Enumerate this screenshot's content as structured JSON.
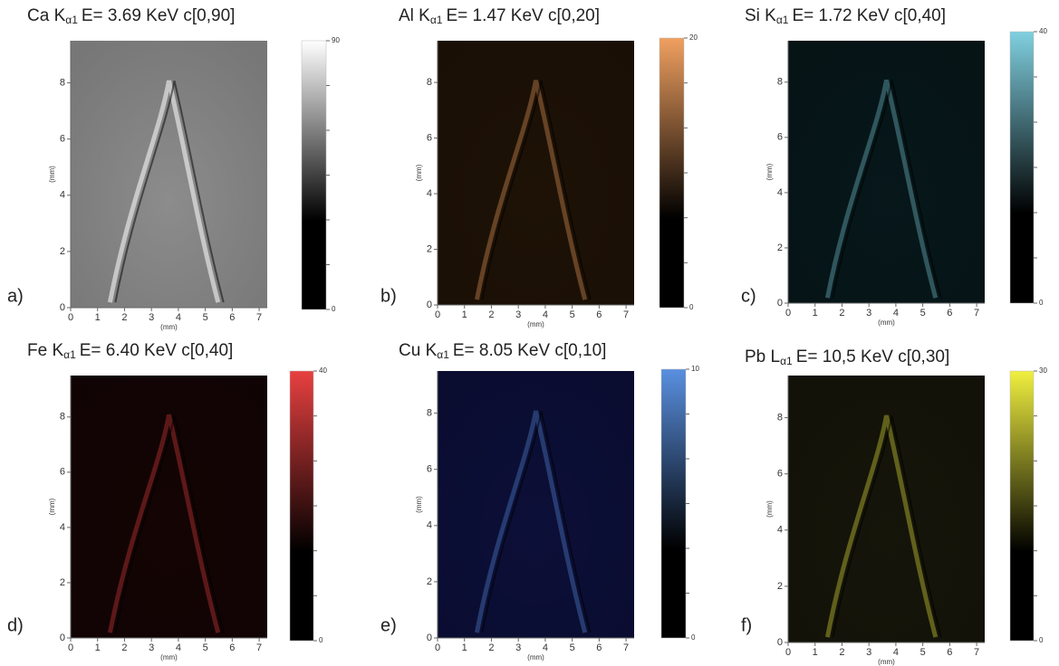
{
  "figure": {
    "axis_label": "(mm)",
    "panels": [
      {
        "label": "a)",
        "element": "Ca K",
        "subscript": "α1",
        "energy": "E= 3.69 KeV c[0,90]",
        "color": "#ffffff",
        "background": "#8c8c8c",
        "clim": [
          0,
          90
        ],
        "cbar_ticks": [
          0,
          90
        ],
        "xlim": [
          0,
          7.3
        ],
        "xticks": [
          0,
          1,
          2,
          3,
          4,
          5,
          6,
          7
        ],
        "ylim": [
          0,
          9.5
        ],
        "yticks": [
          0,
          2,
          4,
          6,
          8
        ]
      },
      {
        "label": "b)",
        "element": "Al K",
        "subscript": "α1",
        "energy": "E= 1.47 KeV c[0,20]",
        "color": "#f0a060",
        "background": "#1e1206",
        "clim": [
          0,
          20
        ],
        "cbar_ticks": [
          0,
          20
        ],
        "xlim": [
          0,
          7.3
        ],
        "xticks": [
          0,
          1,
          2,
          3,
          4,
          5,
          6,
          7
        ],
        "ylim": [
          0,
          9.5
        ],
        "yticks": [
          0,
          2,
          4,
          6,
          8
        ]
      },
      {
        "label": "c)",
        "element": "Si K",
        "subscript": "α1",
        "energy": "E= 1.72 KeV c[0,40]",
        "color": "#80d0e0",
        "background": "#07171a",
        "clim": [
          0,
          40
        ],
        "cbar_ticks": [
          0,
          40
        ],
        "xlim": [
          0,
          7.3
        ],
        "xticks": [
          0,
          1,
          2,
          3,
          4,
          5,
          6,
          7
        ],
        "ylim": [
          0,
          9.5
        ],
        "yticks": [
          0,
          2,
          4,
          6,
          8
        ]
      },
      {
        "label": "d)",
        "element": "Fe K",
        "subscript": "α1",
        "energy": "E= 6.40 KeV c[0,40]",
        "color": "#e84040",
        "background": "#140404",
        "clim": [
          0,
          40
        ],
        "cbar_ticks": [
          0,
          40
        ],
        "xlim": [
          0,
          7.3
        ],
        "xticks": [
          0,
          1,
          2,
          3,
          4,
          5,
          6,
          7
        ],
        "ylim": [
          0,
          9.5
        ],
        "yticks": [
          0,
          2,
          4,
          6,
          8
        ]
      },
      {
        "label": "e)",
        "element": "Cu K",
        "subscript": "α1",
        "energy": "E= 8.05 KeV c[0,10]",
        "color": "#5a90e0",
        "background": "#0c0f38",
        "clim": [
          0,
          10
        ],
        "cbar_ticks": [
          0,
          10
        ],
        "xlim": [
          0,
          7.3
        ],
        "xticks": [
          0,
          1,
          2,
          3,
          4,
          5,
          6,
          7
        ],
        "ylim": [
          0,
          9.5
        ],
        "yticks": [
          0,
          2,
          4,
          6,
          8
        ]
      },
      {
        "label": "f)",
        "element": "Pb L",
        "subscript": "α1",
        "energy": "E= 10,5 KeV c[0,30]",
        "color": "#f0f040",
        "background": "#15150a",
        "clim": [
          0,
          30
        ],
        "cbar_ticks": [
          0,
          30
        ],
        "xlim": [
          0,
          7.3
        ],
        "xticks": [
          0,
          1,
          2,
          3,
          4,
          5,
          6,
          7
        ],
        "ylim": [
          0,
          9.5
        ],
        "yticks": [
          0,
          2,
          4,
          6,
          8
        ]
      }
    ]
  }
}
